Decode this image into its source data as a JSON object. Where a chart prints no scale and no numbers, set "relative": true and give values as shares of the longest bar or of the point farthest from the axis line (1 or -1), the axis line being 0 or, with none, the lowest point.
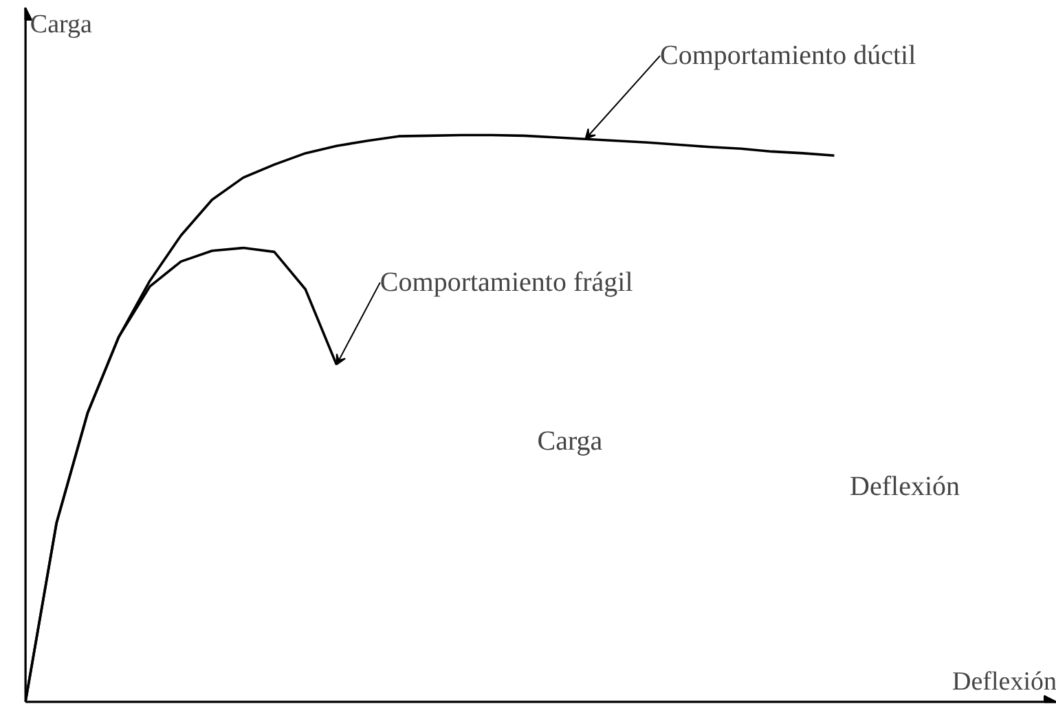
{
  "chart_data": {
    "type": "line",
    "relative": true,
    "xlabel": "Deflexión",
    "ylabel": "Carga",
    "legend": false,
    "marker": "none",
    "line_style": "solid",
    "categories": [
      null,
      null,
      null,
      null,
      null,
      null,
      null,
      null,
      null,
      null,
      null,
      null,
      null,
      null,
      null,
      null,
      null,
      null,
      null,
      null,
      null,
      null,
      null,
      null,
      null,
      null,
      null
    ],
    "series": [
      {
        "name": "Comportamiento dúctil",
        "color": "#000000",
        "values": [
          0,
          0.316,
          0.51,
          0.644,
          0.743,
          0.823,
          0.886,
          0.925,
          0.948,
          0.968,
          0.981,
          0.99,
          0.998,
          0.999,
          1,
          1,
          0.999,
          0.996,
          0.993,
          0.99,
          0.987,
          0.983,
          0.979,
          0.976,
          0.971,
          0.968,
          0.964
        ]
      },
      {
        "name": "Comportamiento frágil",
        "color": "#000000",
        "values": [
          0,
          0.316,
          0.51,
          0.644,
          0.733,
          0.777,
          0.796,
          0.801,
          0.794,
          0.728,
          0.595,
          null,
          null,
          null,
          null,
          null,
          null,
          null,
          null,
          null,
          null,
          null,
          null,
          null,
          null,
          null,
          null
        ]
      }
    ],
    "annotations": [
      "Carga",
      "Deflexión"
    ]
  }
}
